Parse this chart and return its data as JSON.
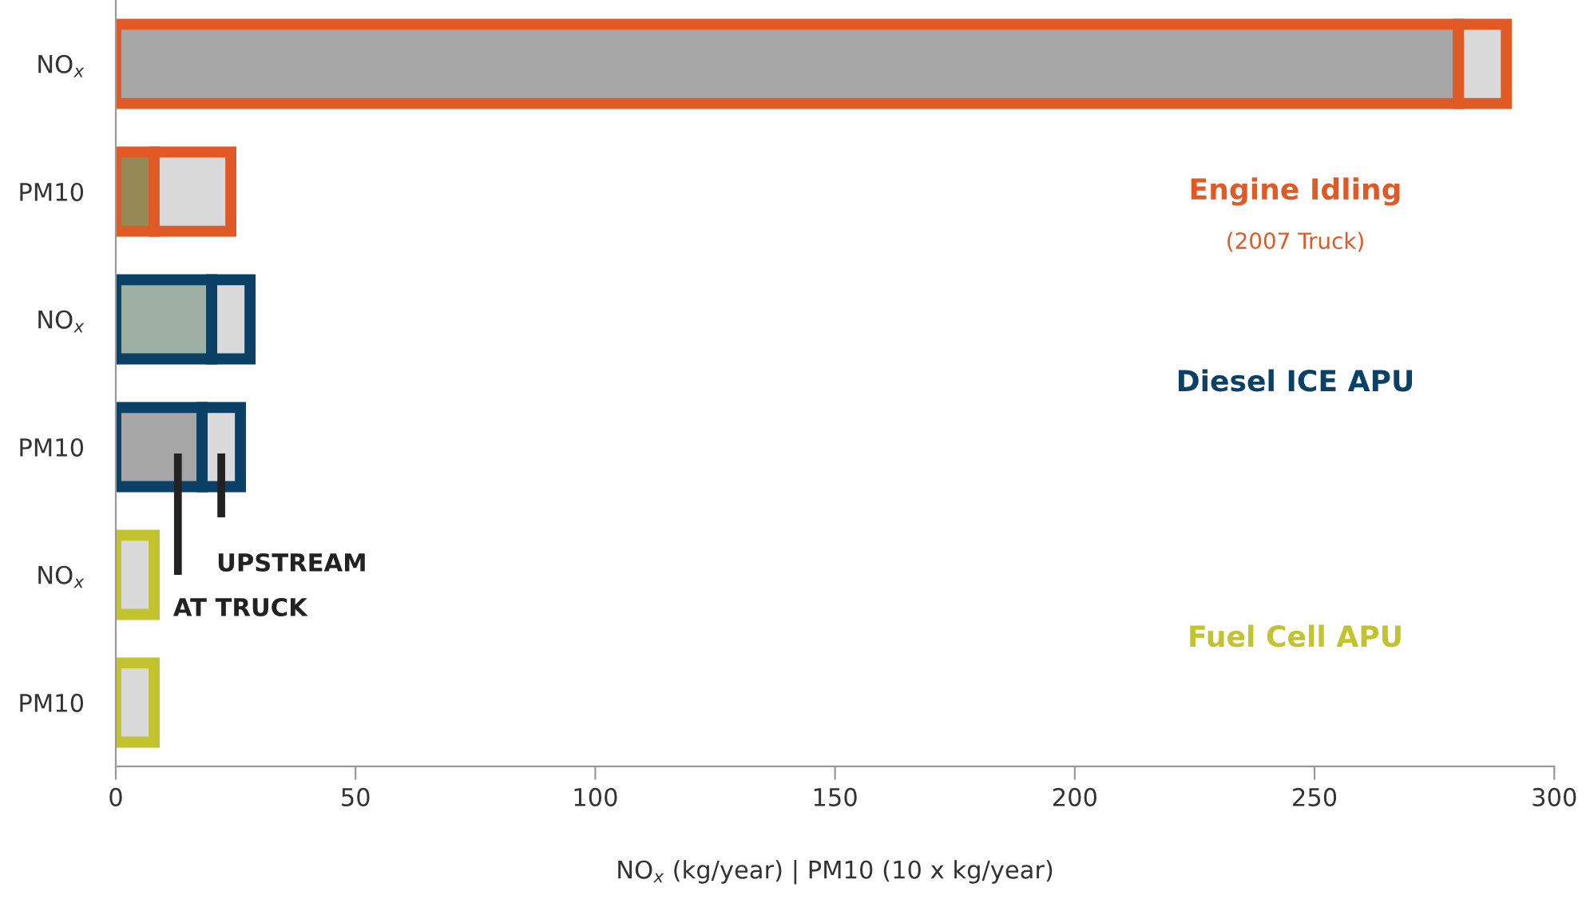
{
  "chart_data": {
    "type": "bar",
    "orientation": "horizontal",
    "stacked": true,
    "categories": [
      "NO$_{x}$",
      "PM10",
      "NO$_{x}$",
      "PM10",
      "NO$_{x}$",
      "PM10"
    ],
    "colors": [
      "#e05a26",
      "#e05a26",
      "#0b4166",
      "#0b4166",
      "#c3c22f",
      "#c3c22f"
    ],
    "series": [
      {
        "name": "AT TRUCK",
        "colors": [
          "#a6a6a6",
          "#958a55",
          "#9db0a3",
          "#a6a6a6",
          "#dadada",
          "#dadada"
        ],
        "values": [
          280,
          8,
          20,
          18,
          0,
          0
        ]
      },
      {
        "name": "UPSTREAM",
        "colors": [
          "#dadada",
          "#dadada",
          "#dadada",
          "#dadada",
          "#dadada",
          "#dadada"
        ],
        "values": [
          10,
          16,
          8,
          8,
          8,
          8
        ]
      }
    ],
    "xlim": [
      0,
      300
    ],
    "xticks": [
      0,
      50,
      100,
      150,
      200,
      250,
      300
    ],
    "xlabel": "NO$_{x}$ (kg/year) | PM10 (10 x kg/year)",
    "annotations": [
      "Engine Idling",
      "(2007 Truck)",
      "Diesel ICE APU",
      "Fuel Cell APU"
    ],
    "grid": false
  }
}
